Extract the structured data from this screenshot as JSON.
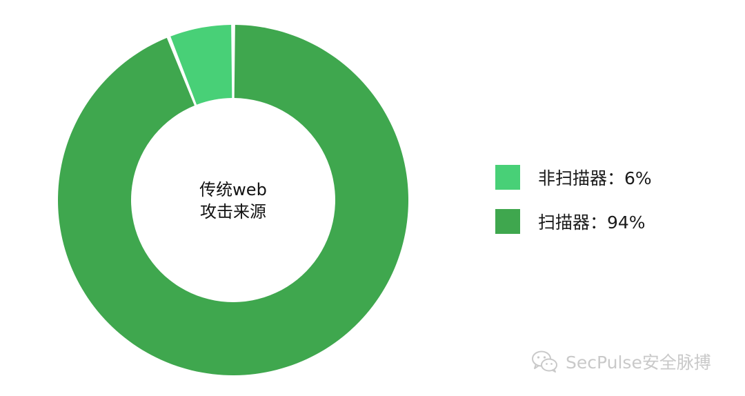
{
  "chart_data": {
    "type": "pie",
    "center_label": [
      "传统web",
      "攻击来源"
    ],
    "slices": [
      {
        "label": "非扫描器",
        "value": 6,
        "display": "非扫描器：6%",
        "color": "#48D077"
      },
      {
        "label": "扫描器",
        "value": 94,
        "display": "扫描器：94%",
        "color": "#3FA74E"
      }
    ],
    "legend_position": "right"
  },
  "watermark": {
    "text": "SecPulse安全脉搏",
    "icon": "wechat-icon"
  }
}
